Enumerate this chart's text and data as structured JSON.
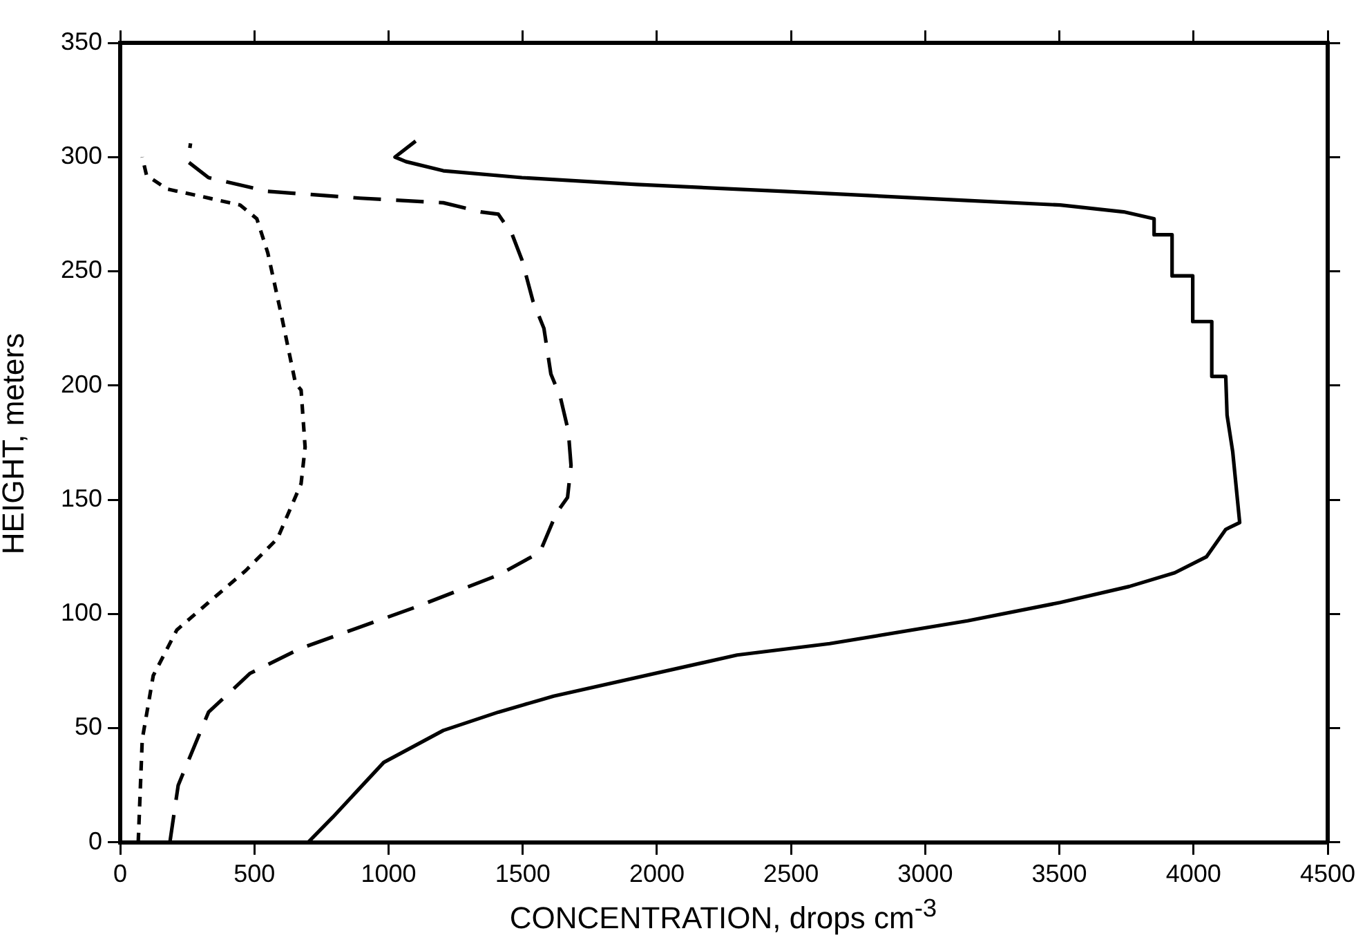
{
  "chart_data": {
    "type": "line",
    "xlabel": "CONCENTRATION, drops cm$^{-3}$",
    "ylabel": "HEIGHT, meters",
    "xlim": [
      0,
      4500
    ],
    "xticks": [
      0,
      500,
      1000,
      1500,
      2000,
      2500,
      3000,
      3500,
      4000,
      4500
    ],
    "ylim": [
      0,
      350
    ],
    "yticks": [
      0,
      50,
      100,
      150,
      200,
      250,
      300,
      350
    ],
    "grid": false,
    "legend": false,
    "marker": "none",
    "series": [
      {
        "color": "#000000",
        "line_style": "solid",
        "x": [
          700,
          792,
          982,
          1204,
          1409,
          1615,
          2299,
          2644,
          3158,
          3503,
          3760,
          3930,
          4048,
          4120,
          4172,
          4146,
          4125,
          4120,
          4068,
          4068,
          3997,
          3997,
          3920,
          3920,
          3853,
          3853,
          3740,
          3503,
          3158,
          2474,
          1924,
          1497,
          1204,
          1065,
          1024,
          1101
        ],
        "values": [
          0,
          11,
          35,
          49,
          57,
          64,
          82,
          87,
          97,
          105,
          112,
          118,
          125,
          137,
          140,
          171,
          187,
          204,
          204,
          228,
          228,
          248,
          248,
          266,
          266,
          273,
          276,
          279,
          281,
          285,
          288,
          291,
          294,
          298,
          300,
          307
        ]
      },
      {
        "color": "#000000",
        "line_style": "dashed",
        "x": [
          185,
          216,
          329,
          484,
          674,
          1101,
          1409,
          1564,
          1625,
          1667,
          1680,
          1670,
          1640,
          1605,
          1579,
          1538,
          1497,
          1461,
          1409,
          1343,
          1204,
          895,
          550,
          329,
          252,
          262
        ],
        "values": [
          0,
          25,
          57,
          74,
          85,
          103,
          117,
          127,
          144,
          151,
          165,
          180,
          195,
          205,
          225,
          237,
          255,
          266,
          275,
          276,
          280,
          282,
          285,
          291,
          298,
          306
        ]
      },
      {
        "color": "#000000",
        "line_style": "dotted",
        "x": [
          67,
          82,
          123,
          211,
          329,
          468,
          586,
          674,
          689,
          674,
          653,
          602,
          550,
          509,
          447,
          293,
          175,
          98,
          82
        ],
        "values": [
          0,
          45,
          73,
          93,
          105,
          119,
          133,
          157,
          173,
          198,
          201,
          230,
          258,
          273,
          279,
          283,
          286,
          292,
          300
        ]
      }
    ]
  }
}
